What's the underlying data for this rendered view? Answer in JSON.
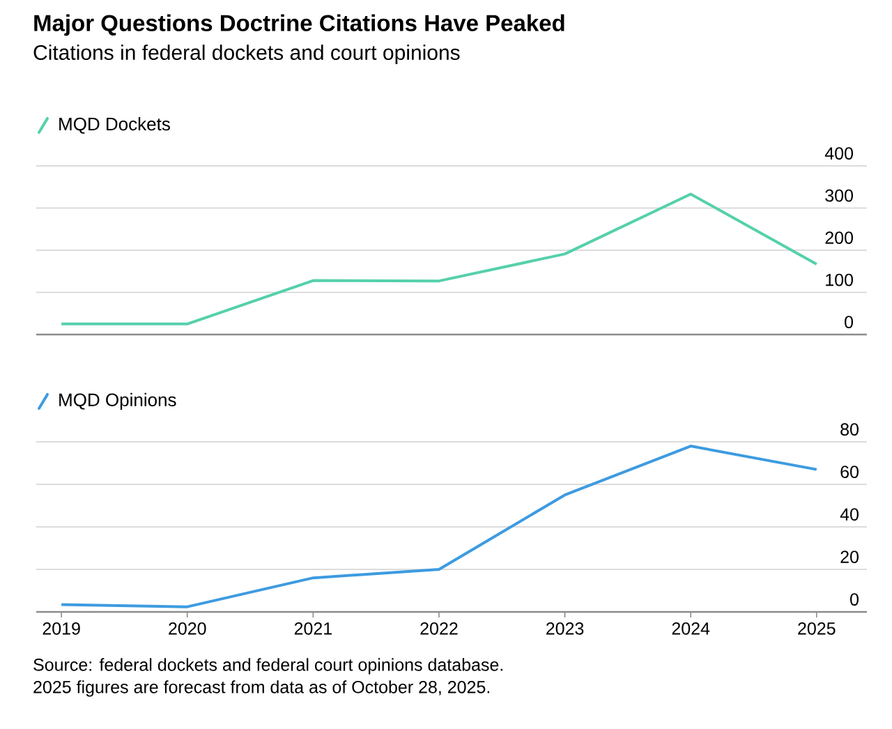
{
  "chart_data": [
    {
      "type": "line",
      "title": "Major Questions Doctrine Citations Have Peaked",
      "subtitle": "Citations in federal dockets and court opinions",
      "x": [
        2019,
        2020,
        2021,
        2022,
        2023,
        2024,
        2025
      ],
      "xlim": [
        2018.8,
        2025.4
      ],
      "xticks": [
        2019,
        2020,
        2021,
        2022,
        2023,
        2024,
        2025
      ],
      "ylim": [
        0,
        400
      ],
      "yticks": [
        0,
        100,
        200,
        300,
        400
      ],
      "grid": "y",
      "legend": "top left",
      "tick_labels": "y",
      "series": [
        {
          "name": "MQD Dockets",
          "color": "#55d0ab",
          "values": [
            25,
            25,
            128,
            127,
            191,
            333,
            167
          ]
        }
      ]
    },
    {
      "type": "line",
      "x": [
        2019,
        2020,
        2021,
        2022,
        2023,
        2024,
        2025
      ],
      "xlim": [
        2018.8,
        2025.4
      ],
      "xticks": [
        2019,
        2020,
        2021,
        2022,
        2023,
        2024,
        2025
      ],
      "ylim": [
        0,
        80
      ],
      "yticks": [
        0,
        20,
        40,
        60,
        80
      ],
      "grid": "y",
      "legend": "top left",
      "series": [
        {
          "name": "MQD Opinions",
          "color": "#3d9be0",
          "values": [
            3.4,
            2.4,
            16,
            20,
            55,
            78,
            67
          ]
        }
      ],
      "annotations": [
        "Source: federal dockets and federal court opinions database.",
        "2025 figures are forecast from data as of October 28, 2025."
      ]
    }
  ]
}
